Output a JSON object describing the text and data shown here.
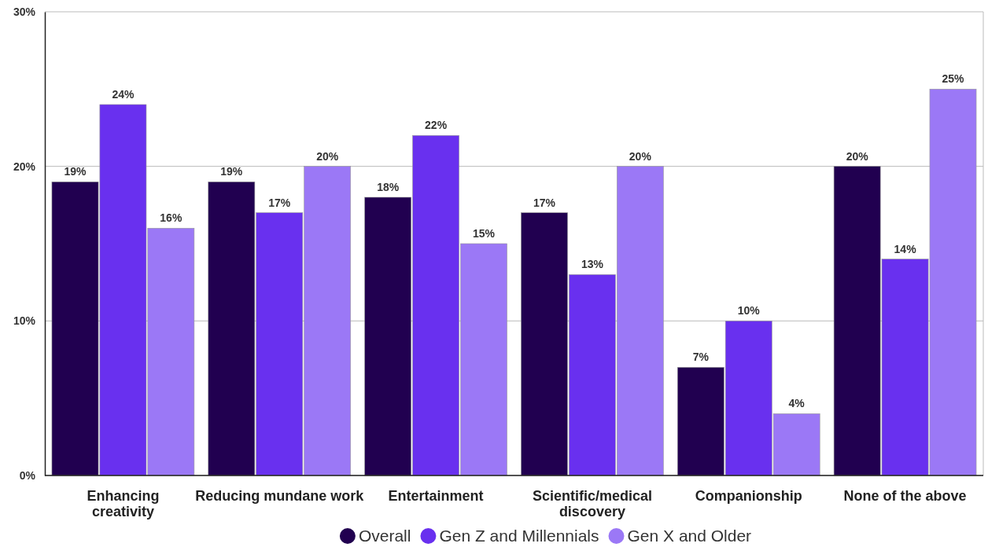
{
  "chart_data": {
    "type": "bar",
    "categories": [
      "Enhancing creativity",
      "Reducing mundane work",
      "Entertainment",
      "Scientific/medical discovery",
      "Companionship",
      "None of the above"
    ],
    "series": [
      {
        "name": "Overall",
        "color": "#210050",
        "values": [
          19,
          19,
          18,
          17,
          7,
          20
        ],
        "value_labels": [
          "19%",
          "19%",
          "18%",
          "17%",
          "7%",
          "20%"
        ]
      },
      {
        "name": "Gen Z and Millennials",
        "color": "#6930ef",
        "values": [
          24,
          17,
          22,
          13,
          10,
          14
        ],
        "value_labels": [
          "24%",
          "17%",
          "22%",
          "13%",
          "10%",
          "14%"
        ]
      },
      {
        "name": "Gen X and Older",
        "color": "#9b78f6",
        "values": [
          16,
          20,
          15,
          20,
          4,
          25
        ],
        "value_labels": [
          "16%",
          "20%",
          "15%",
          "20%",
          "4%",
          "25%"
        ]
      }
    ],
    "ylim": [
      0,
      30
    ],
    "yticks": [
      {
        "value": 0,
        "label": "0%"
      },
      {
        "value": 10,
        "label": "10%"
      },
      {
        "value": 20,
        "label": "20%"
      },
      {
        "value": 30,
        "label": "30%"
      }
    ],
    "grid": "y",
    "legend": "bottom"
  }
}
